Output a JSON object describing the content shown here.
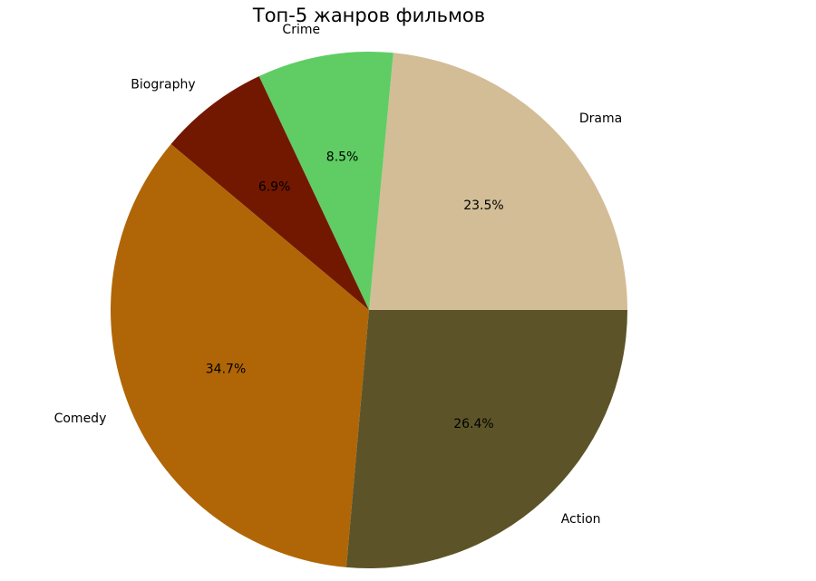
{
  "chart_data": {
    "type": "pie",
    "title": "Топ-5 жанров фильмов",
    "categories": [
      "Drama",
      "Crime",
      "Biography",
      "Comedy",
      "Action"
    ],
    "values": [
      23.5,
      8.5,
      6.9,
      34.7,
      26.4
    ],
    "value_labels": [
      "23.5%",
      "8.5%",
      "6.9%",
      "34.7%",
      "26.4%"
    ],
    "colors": [
      "#d2bd96",
      "#5fcd64",
      "#731800",
      "#b06606",
      "#5c5428"
    ]
  }
}
